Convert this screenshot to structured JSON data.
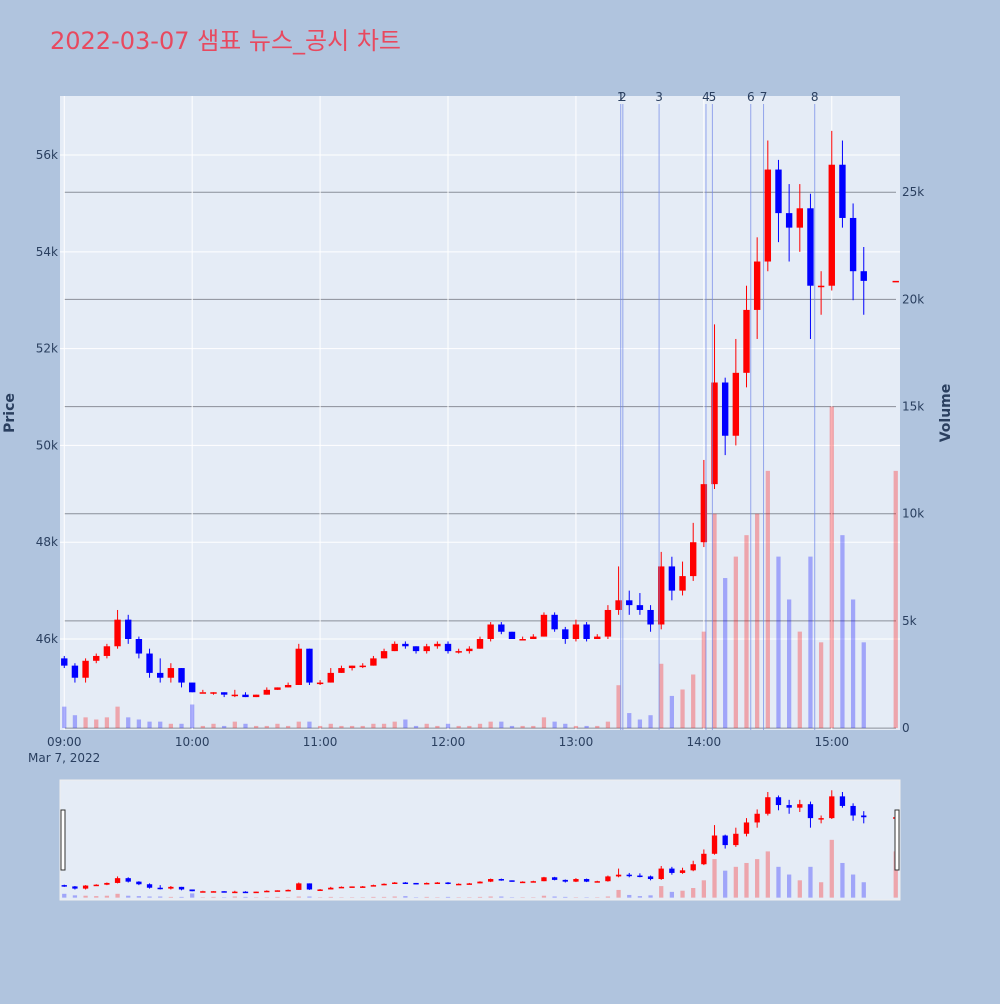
{
  "chart_data": {
    "type": "candlestick",
    "title": "2022-03-07 샘표 뉴스_공시 차트",
    "ylabel": "Price",
    "y2label": "Volume",
    "x_date_label": "Mar 7, 2022",
    "x": [
      "09:00",
      "09:05",
      "09:10",
      "09:15",
      "09:20",
      "09:25",
      "09:30",
      "09:35",
      "09:40",
      "09:45",
      "09:50",
      "09:55",
      "10:00",
      "10:05",
      "10:10",
      "10:15",
      "10:20",
      "10:25",
      "10:30",
      "10:35",
      "10:40",
      "10:45",
      "10:50",
      "10:55",
      "11:00",
      "11:05",
      "11:10",
      "11:15",
      "11:20",
      "11:25",
      "11:30",
      "11:35",
      "11:40",
      "11:45",
      "11:50",
      "11:55",
      "12:00",
      "12:05",
      "12:10",
      "12:15",
      "12:20",
      "12:25",
      "12:30",
      "12:35",
      "12:40",
      "12:45",
      "12:50",
      "12:55",
      "13:00",
      "13:05",
      "13:10",
      "13:15",
      "13:20",
      "13:25",
      "13:30",
      "13:35",
      "13:40",
      "13:45",
      "13:50",
      "13:55",
      "14:00",
      "14:05",
      "14:10",
      "14:15",
      "14:20",
      "14:25",
      "14:30",
      "14:35",
      "14:40",
      "14:45",
      "14:50",
      "14:55",
      "15:00",
      "15:05",
      "15:10",
      "15:15",
      "15:30"
    ],
    "open": [
      45600,
      45450,
      45200,
      45550,
      45650,
      45850,
      46400,
      46000,
      45700,
      45300,
      45200,
      45400,
      45100,
      44900,
      44900,
      44900,
      44850,
      44850,
      44800,
      44850,
      44950,
      45000,
      45050,
      45800,
      45100,
      45100,
      45300,
      45400,
      45450,
      45450,
      45600,
      45750,
      45900,
      45850,
      45750,
      45850,
      45900,
      45750,
      45750,
      45800,
      46000,
      46300,
      46150,
      46000,
      46000,
      46050,
      46500,
      46200,
      46000,
      46300,
      46000,
      46050,
      46600,
      46800,
      46700,
      46600,
      46300,
      47500,
      47000,
      47300,
      48000,
      49200,
      51300,
      50200,
      51500,
      52800,
      53800,
      55700,
      54800,
      54500,
      54900,
      53300,
      53300,
      55800,
      54700,
      53600,
      53400
    ],
    "high": [
      45650,
      45500,
      45600,
      45700,
      45900,
      46600,
      46500,
      46050,
      45800,
      45600,
      45500,
      45400,
      45100,
      44950,
      44900,
      44900,
      44950,
      44900,
      44850,
      45000,
      45000,
      45100,
      45900,
      45800,
      45150,
      45400,
      45450,
      45450,
      45500,
      45650,
      45800,
      45950,
      45950,
      45850,
      45900,
      45950,
      45950,
      45800,
      45850,
      46050,
      46350,
      46350,
      46150,
      46050,
      46100,
      46550,
      46550,
      46250,
      46400,
      46350,
      46100,
      46700,
      47500,
      47000,
      46950,
      46700,
      47800,
      47700,
      47600,
      48400,
      49700,
      52500,
      51400,
      52200,
      53300,
      54300,
      56300,
      55900,
      55400,
      55400,
      55200,
      53600,
      56500,
      56300,
      55000,
      54100,
      53400
    ],
    "low": [
      45400,
      45100,
      45100,
      45500,
      45600,
      45800,
      45900,
      45600,
      45200,
      45100,
      45100,
      45000,
      44900,
      44900,
      44850,
      44800,
      44800,
      44800,
      44800,
      44850,
      44950,
      45000,
      45050,
      45050,
      45050,
      45100,
      45300,
      45350,
      45400,
      45450,
      45600,
      45750,
      45800,
      45700,
      45700,
      45800,
      45700,
      45700,
      45700,
      45800,
      45950,
      46100,
      46000,
      46000,
      46000,
      46050,
      46150,
      45900,
      45950,
      45950,
      46000,
      46000,
      46500,
      46500,
      46500,
      46150,
      46200,
      46800,
      46900,
      47200,
      47900,
      49100,
      49800,
      50000,
      51200,
      52200,
      53600,
      54200,
      53800,
      54000,
      52200,
      52700,
      53200,
      54500,
      53000,
      52700,
      53400
    ],
    "close": [
      45450,
      45200,
      45550,
      45650,
      45850,
      46400,
      46000,
      45700,
      45300,
      45200,
      45400,
      45100,
      44900,
      44900,
      44900,
      44850,
      44850,
      44800,
      44850,
      44950,
      45000,
      45050,
      45800,
      45100,
      45100,
      45300,
      45400,
      45450,
      45450,
      45600,
      45750,
      45900,
      45850,
      45750,
      45850,
      45900,
      45750,
      45750,
      45800,
      46000,
      46300,
      46150,
      46000,
      46000,
      46050,
      46500,
      46200,
      46000,
      46300,
      46000,
      46050,
      46600,
      46800,
      46700,
      46600,
      46300,
      47500,
      47000,
      47300,
      48000,
      49200,
      51300,
      50200,
      51500,
      52800,
      53800,
      55700,
      54800,
      54500,
      54900,
      53300,
      53300,
      55800,
      54700,
      53600,
      53400,
      53400
    ],
    "volume": [
      1000,
      600,
      500,
      400,
      500,
      1000,
      500,
      400,
      300,
      300,
      200,
      200,
      1100,
      100,
      200,
      100,
      300,
      200,
      100,
      100,
      200,
      100,
      300,
      300,
      100,
      200,
      100,
      100,
      100,
      200,
      200,
      300,
      400,
      100,
      200,
      100,
      200,
      100,
      100,
      200,
      300,
      300,
      100,
      100,
      100,
      500,
      300,
      200,
      100,
      100,
      100,
      300,
      2000,
      700,
      400,
      600,
      3000,
      1500,
      1800,
      2500,
      4500,
      10000,
      7000,
      8000,
      9000,
      10000,
      12000,
      8000,
      6000,
      4500,
      8000,
      4000,
      15000,
      9000,
      6000,
      4000,
      12000
    ],
    "increasing_color": "#ff0000",
    "decreasing_color": "#0000ff",
    "xlim": [
      "08:58",
      "15:32"
    ],
    "xticks": [
      "09:00",
      "10:00",
      "11:00",
      "12:00",
      "13:00",
      "14:00",
      "15:00"
    ],
    "ylim": [
      44120,
      57220
    ],
    "yticks": [
      {
        "value": 46000,
        "label": "46k"
      },
      {
        "value": 48000,
        "label": "48k"
      },
      {
        "value": 50000,
        "label": "50k"
      },
      {
        "value": 52000,
        "label": "52k"
      },
      {
        "value": 54000,
        "label": "54k"
      },
      {
        "value": 56000,
        "label": "56k"
      }
    ],
    "y2lim": [
      -90,
      29490
    ],
    "y2ticks": [
      0,
      {
        "value": 5000,
        "label": "5k"
      },
      {
        "value": 10000,
        "label": "10k"
      },
      {
        "value": 15000,
        "label": "15k"
      },
      {
        "value": 20000,
        "label": "20k"
      },
      {
        "value": 25000,
        "label": "25k"
      }
    ],
    "annotations": [
      {
        "x": "13:21",
        "text": "1"
      },
      {
        "x": "13:22",
        "text": "2"
      },
      {
        "x": "13:39",
        "text": "3"
      },
      {
        "x": "14:01",
        "text": "4"
      },
      {
        "x": "14:04",
        "text": "5"
      },
      {
        "x": "14:22",
        "text": "6"
      },
      {
        "x": "14:28",
        "text": "7"
      },
      {
        "x": "14:52",
        "text": "8"
      }
    ],
    "grid": true,
    "rangeslider": true
  }
}
